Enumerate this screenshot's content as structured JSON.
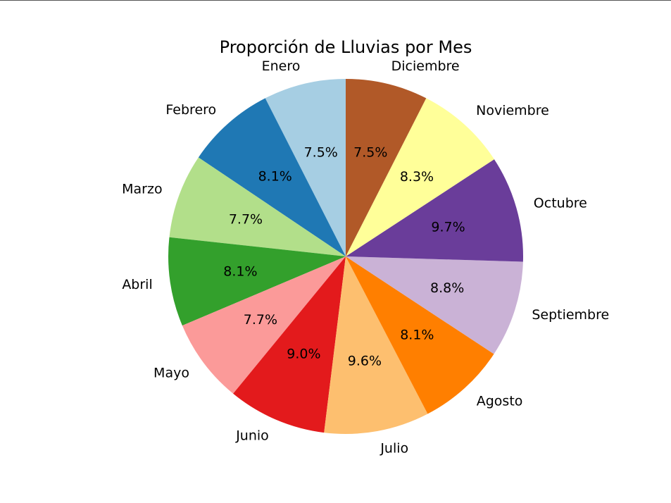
{
  "chart_data": {
    "type": "pie",
    "title": "Proporción de Lluvias por Mes",
    "start_angle_deg": 90,
    "direction": "counterclockwise",
    "categories": [
      "Enero",
      "Febrero",
      "Marzo",
      "Abril",
      "Mayo",
      "Junio",
      "Julio",
      "Agosto",
      "Septiembre",
      "Octubre",
      "Noviembre",
      "Diciembre"
    ],
    "values": [
      7.5,
      8.1,
      7.7,
      8.1,
      7.7,
      9.0,
      9.6,
      8.1,
      8.8,
      9.7,
      8.3,
      7.5
    ],
    "value_labels": [
      "7.5%",
      "8.1%",
      "7.7%",
      "8.1%",
      "7.7%",
      "9.0%",
      "9.6%",
      "8.1%",
      "8.8%",
      "9.7%",
      "8.3%",
      "7.5%"
    ],
    "colors": [
      "#a6cee3",
      "#1f78b4",
      "#b2df8a",
      "#33a02c",
      "#fb9a99",
      "#e31a1c",
      "#fdbf6f",
      "#ff7f00",
      "#cab2d6",
      "#6a3d9a",
      "#ffff99",
      "#b15928"
    ],
    "legend": "none",
    "grid": false
  }
}
